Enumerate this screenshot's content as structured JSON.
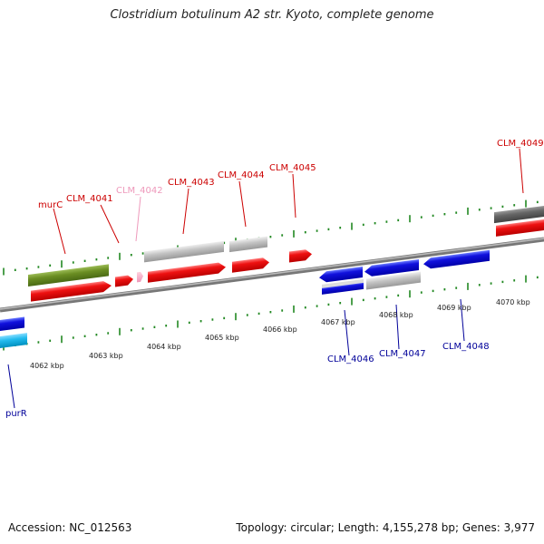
{
  "title": "Clostridium botulinum A2 str. Kyoto, complete genome",
  "footer": {
    "accession": "Accession: NC_012563",
    "info": "Topology: circular; Length: 4,155,278 bp; Genes: 3,977"
  },
  "colors": {
    "forward_gene": "#ee1111",
    "reverse_gene": "#1111dd",
    "pseudo_gene": "#bbbbbb",
    "highlight_gene": "#6b8e23",
    "rna_gene": "#22bbee",
    "dark_gene": "#666666",
    "forward_label": "#cc0000",
    "reverse_label": "#000099",
    "faint_label": "#ee99bb",
    "tick": "#228822",
    "backbone": "#999999"
  },
  "scale": {
    "unit": "kbp",
    "labels": [
      "4062 kbp",
      "4063 kbp",
      "4064 kbp",
      "4065 kbp",
      "4066 kbp",
      "4067 kbp",
      "4068 kbp",
      "4069 kbp",
      "4070 kbp"
    ]
  },
  "upper_labels": [
    "murC",
    "CLM_4041",
    "CLM_4042",
    "CLM_4043",
    "CLM_4044",
    "CLM_4045",
    "CLM_4049"
  ],
  "lower_labels": [
    "purR",
    "CLM_4046",
    "CLM_4047",
    "CLM_4048"
  ],
  "genes": [
    {
      "name": "murC",
      "strand": "+",
      "start_kbp": 4062.55,
      "end_kbp": 4063.4,
      "type": "highlight"
    },
    {
      "name": "CLM_4041",
      "strand": "+",
      "start_kbp": 4063.5,
      "end_kbp": 4063.8,
      "type": "cds"
    },
    {
      "name": "CLM_4042",
      "strand": "+",
      "start_kbp": 4063.82,
      "end_kbp": 4063.9,
      "type": "faint"
    },
    {
      "name": "CLM_4043",
      "strand": "+",
      "start_kbp": 4064.0,
      "end_kbp": 4065.3,
      "type": "cds"
    },
    {
      "name": "CLM_4044",
      "strand": "+",
      "start_kbp": 4065.4,
      "end_kbp": 4066.0,
      "type": "cds"
    },
    {
      "name": "CLM_4045",
      "strand": "+",
      "start_kbp": 4066.3,
      "end_kbp": 4066.65,
      "type": "cds"
    },
    {
      "name": "CLM_4046",
      "strand": "-",
      "start_kbp": 4067.0,
      "end_kbp": 4067.7,
      "type": "cds"
    },
    {
      "name": "CLM_4047",
      "strand": "-",
      "start_kbp": 4067.75,
      "end_kbp": 4068.6,
      "type": "cds"
    },
    {
      "name": "CLM_4048",
      "strand": "-",
      "start_kbp": 4068.7,
      "end_kbp": 4069.8,
      "type": "cds"
    },
    {
      "name": "CLM_4049",
      "strand": "+",
      "start_kbp": 4070.0,
      "end_kbp": 4070.9,
      "type": "cds"
    },
    {
      "name": "purR",
      "strand": "-",
      "start_kbp": 4061.4,
      "end_kbp": 4061.85,
      "type": "cds"
    }
  ]
}
